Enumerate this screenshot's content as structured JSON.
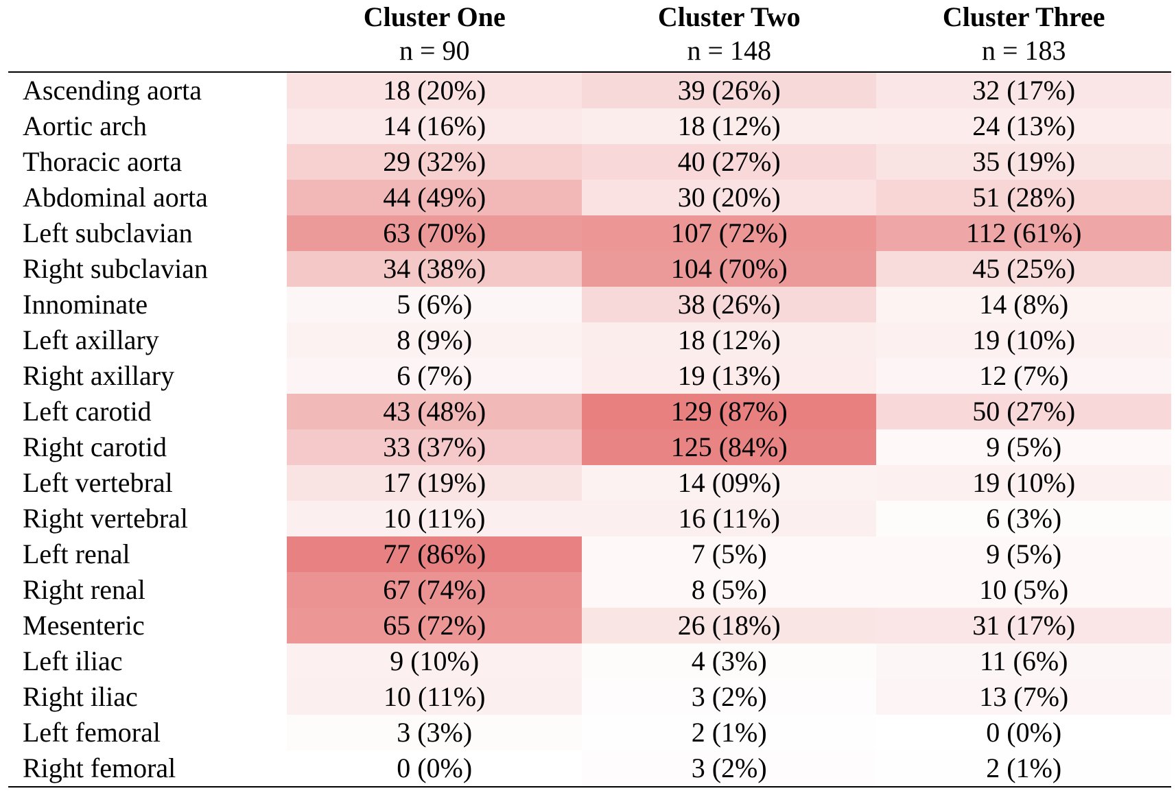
{
  "table": {
    "shade_color": "#dd4444",
    "columns": [
      {
        "title": "Cluster One",
        "n": "n = 90"
      },
      {
        "title": "Cluster Two",
        "n": "n = 148"
      },
      {
        "title": "Cluster Three",
        "n": "n = 183"
      }
    ],
    "rows": [
      {
        "label": "Ascending aorta",
        "cells": [
          "18 (20%)",
          "39 (26%)",
          "32 (17%)"
        ]
      },
      {
        "label": "Aortic arch",
        "cells": [
          "14 (16%)",
          "18 (12%)",
          "24 (13%)"
        ]
      },
      {
        "label": "Thoracic aorta",
        "cells": [
          "29 (32%)",
          "40 (27%)",
          "35 (19%)"
        ]
      },
      {
        "label": "Abdominal aorta",
        "cells": [
          "44 (49%)",
          "30 (20%)",
          "51 (28%)"
        ]
      },
      {
        "label": "Left subclavian",
        "cells": [
          "63 (70%)",
          "107 (72%)",
          "112 (61%)"
        ]
      },
      {
        "label": "Right subclavian",
        "cells": [
          "34 (38%)",
          "104 (70%)",
          "45 (25%)"
        ]
      },
      {
        "label": "Innominate",
        "cells": [
          "5 (6%)",
          "38 (26%)",
          "14 (8%)"
        ]
      },
      {
        "label": "Left axillary",
        "cells": [
          "8 (9%)",
          "18 (12%)",
          "19 (10%)"
        ]
      },
      {
        "label": "Right axillary",
        "cells": [
          "6 (7%)",
          "19 (13%)",
          "12 (7%)"
        ]
      },
      {
        "label": "Left carotid",
        "cells": [
          "43 (48%)",
          "129 (87%)",
          "50 (27%)"
        ]
      },
      {
        "label": "Right carotid",
        "cells": [
          "33 (37%)",
          "125 (84%)",
          "9 (5%)"
        ]
      },
      {
        "label": "Left vertebral",
        "cells": [
          "17 (19%)",
          "14 (09%)",
          "19 (10%)"
        ]
      },
      {
        "label": "Right vertebral",
        "cells": [
          "10 (11%)",
          "16 (11%)",
          "6 (3%)"
        ]
      },
      {
        "label": "Left renal",
        "cells": [
          "77 (86%)",
          "7 (5%)",
          "9 (5%)"
        ]
      },
      {
        "label": "Right renal",
        "cells": [
          "67 (74%)",
          "8 (5%)",
          "10 (5%)"
        ]
      },
      {
        "label": "Mesenteric",
        "cells": [
          "65 (72%)",
          "26 (18%)",
          "31 (17%)"
        ]
      },
      {
        "label": "Left iliac",
        "cells": [
          "9 (10%)",
          "4 (3%)",
          "11 (6%)"
        ]
      },
      {
        "label": "Right iliac",
        "cells": [
          "10 (11%)",
          "3 (2%)",
          "13 (7%)"
        ]
      },
      {
        "label": "Left femoral",
        "cells": [
          "3 (3%)",
          "2 (1%)",
          "0 (0%)"
        ]
      },
      {
        "label": "Right femoral",
        "cells": [
          "0 (0%)",
          "3 (2%)",
          "2 (1%)"
        ]
      }
    ]
  }
}
